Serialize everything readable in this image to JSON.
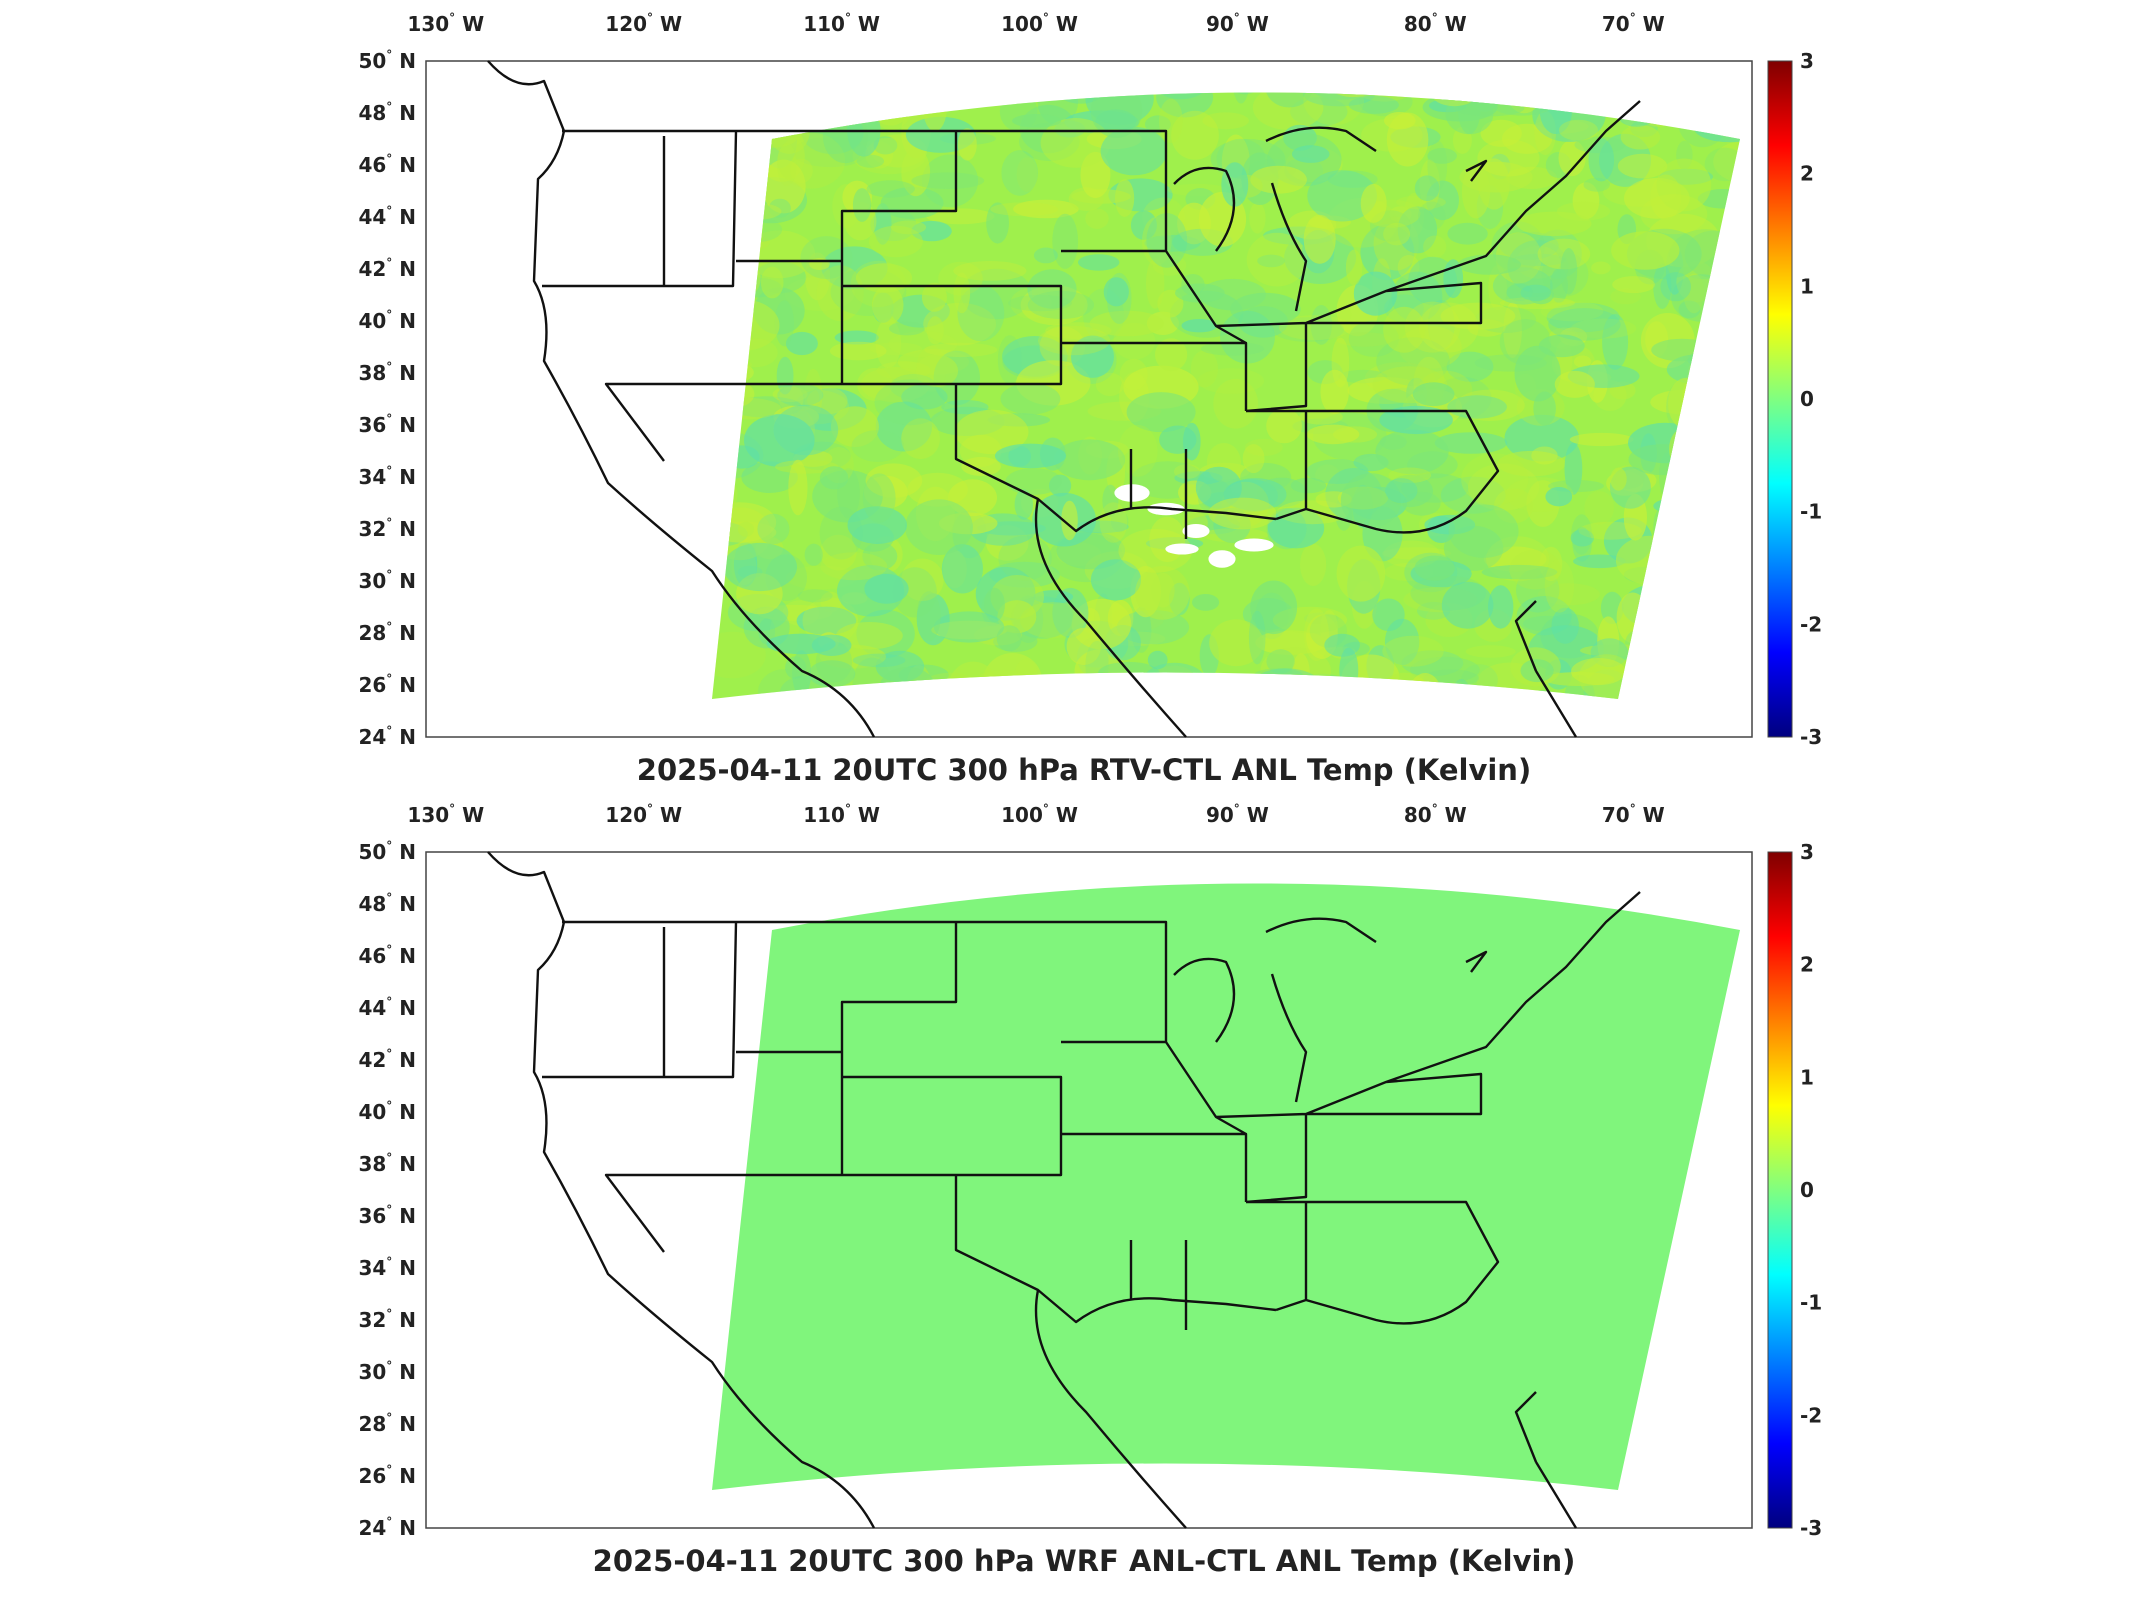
{
  "panels": [
    {
      "id": "top",
      "title": "2025-04-11 20UTC 300 hPa RTV-CTL ANL Temp (Kelvin)",
      "field": "noisy",
      "field_colors": [
        "#9ff04c",
        "#b6ef3f",
        "#7be67a",
        "#5fe0a6",
        "#c8f038"
      ],
      "blank_patches": true
    },
    {
      "id": "bottom",
      "title": "2025-04-11 20UTC 300 hPa WRF ANL-CTL ANL Temp (Kelvin)",
      "field": "uniform",
      "field_colors": [
        "#80f57c"
      ],
      "blank_patches": false
    }
  ],
  "map": {
    "lon_ticks": [
      {
        "value": -130,
        "label": "130",
        "dir": "W"
      },
      {
        "value": -120,
        "label": "120",
        "dir": "W"
      },
      {
        "value": -110,
        "label": "110",
        "dir": "W"
      },
      {
        "value": -100,
        "label": "100",
        "dir": "W"
      },
      {
        "value": -90,
        "label": "90",
        "dir": "W"
      },
      {
        "value": -80,
        "label": "80",
        "dir": "W"
      },
      {
        "value": -70,
        "label": "70",
        "dir": "W"
      }
    ],
    "lat_ticks": [
      {
        "value": 50,
        "label": "50",
        "dir": "N"
      },
      {
        "value": 48,
        "label": "48",
        "dir": "N"
      },
      {
        "value": 46,
        "label": "46",
        "dir": "N"
      },
      {
        "value": 44,
        "label": "44",
        "dir": "N"
      },
      {
        "value": 42,
        "label": "42",
        "dir": "N"
      },
      {
        "value": 40,
        "label": "40",
        "dir": "N"
      },
      {
        "value": 38,
        "label": "38",
        "dir": "N"
      },
      {
        "value": 36,
        "label": "36",
        "dir": "N"
      },
      {
        "value": 34,
        "label": "34",
        "dir": "N"
      },
      {
        "value": 32,
        "label": "32",
        "dir": "N"
      },
      {
        "value": 30,
        "label": "30",
        "dir": "N"
      },
      {
        "value": 28,
        "label": "28",
        "dir": "N"
      },
      {
        "value": 26,
        "label": "26",
        "dir": "N"
      },
      {
        "value": 24,
        "label": "24",
        "dir": "N"
      }
    ],
    "lon_range": [
      -131,
      -64
    ],
    "lat_range": [
      24,
      50
    ]
  },
  "colorbar": {
    "range": [
      -3,
      3
    ],
    "ticks": [
      "3",
      "2",
      "1",
      "0",
      "-1",
      "-2",
      "-3"
    ],
    "colormap": [
      "#7f0000",
      "#ff0000",
      "#ff8000",
      "#ffff00",
      "#80ff80",
      "#00ffff",
      "#0080ff",
      "#0000ff",
      "#00007f"
    ]
  }
}
